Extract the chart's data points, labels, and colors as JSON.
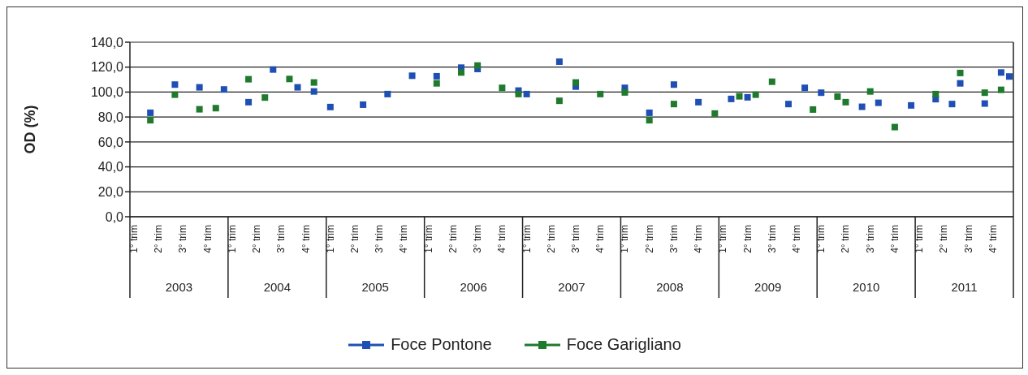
{
  "chart_data": {
    "type": "scatter",
    "ylabel": "OD (%)",
    "marker": "square",
    "grid": "y",
    "legend": "bottom",
    "categories": [
      "1° trim",
      null,
      null,
      "2° trim",
      null,
      null,
      "3° trim",
      null,
      null,
      "4° trim",
      null,
      null,
      "1° trim",
      null,
      null,
      "2° trim",
      null,
      null,
      "3° trim",
      null,
      null,
      "4° trim",
      null,
      null,
      "1° trim",
      null,
      null,
      "2° trim",
      null,
      null,
      "3° trim",
      null,
      null,
      "4° trim",
      null,
      null,
      "1° trim",
      null,
      null,
      "2° trim",
      null,
      null,
      "3° trim",
      null,
      null,
      "4° trim",
      null,
      null,
      "1° trim",
      null,
      null,
      "2° trim",
      null,
      null,
      "3° trim",
      null,
      null,
      "4° trim",
      null,
      null,
      "1° trim",
      null,
      null,
      "2° trim",
      null,
      null,
      "3° trim",
      null,
      null,
      "4° trim",
      null,
      null,
      "1° trim",
      null,
      null,
      "2° trim",
      null,
      null,
      "3° trim",
      null,
      null,
      "4° trim",
      null,
      null,
      "1° trim",
      null,
      null,
      "2° trim",
      null,
      null,
      "3° trim",
      null,
      null,
      "4° trim",
      null,
      null,
      "1° trim",
      null,
      null,
      "2° trim",
      null,
      null,
      "3° trim",
      null,
      null,
      "4° trim",
      null,
      null
    ],
    "x2lim": [
      2003,
      2012
    ],
    "x2ticks": [
      {
        "value": 2003.5,
        "label": "2003"
      },
      {
        "value": 2004.5,
        "label": "2004"
      },
      {
        "value": 2005.5,
        "label": "2005"
      },
      {
        "value": 2006.5,
        "label": "2006"
      },
      {
        "value": 2007.5,
        "label": "2007"
      },
      {
        "value": 2008.5,
        "label": "2008"
      },
      {
        "value": 2009.5,
        "label": "2009"
      },
      {
        "value": 2010.5,
        "label": "2010"
      },
      {
        "value": 2011.5,
        "label": "2011"
      }
    ],
    "ylim": [
      0,
      140
    ],
    "yticks": [
      {
        "value": 0,
        "label": "0,0"
      },
      {
        "value": 20,
        "label": "20,0"
      },
      {
        "value": 40,
        "label": "40,0"
      },
      {
        "value": 60,
        "label": "60,0"
      },
      {
        "value": 80,
        "label": "80,0"
      },
      {
        "value": 100,
        "label": "100,0"
      },
      {
        "value": 120,
        "label": "120,0"
      },
      {
        "value": 140,
        "label": "140,0"
      }
    ],
    "series": [
      {
        "name": "Foce Pontone",
        "color": "#1f4fb4",
        "values": [
          null,
          null,
          83.4,
          null,
          null,
          106.0,
          null,
          null,
          103.8,
          null,
          null,
          102.1,
          null,
          null,
          91.9,
          null,
          null,
          118.1,
          null,
          null,
          103.8,
          null,
          100.5,
          null,
          88.0,
          null,
          null,
          null,
          89.9,
          null,
          null,
          98.4,
          null,
          null,
          113.1,
          null,
          null,
          112.7,
          null,
          null,
          119.6,
          null,
          118.5,
          null,
          null,
          null,
          null,
          101.2,
          98.4,
          null,
          null,
          null,
          124.4,
          null,
          104.4,
          null,
          null,
          null,
          null,
          null,
          103.4,
          null,
          null,
          83.4,
          null,
          null,
          106.0,
          null,
          null,
          91.9,
          null,
          null,
          null,
          94.5,
          null,
          95.8,
          null,
          null,
          null,
          null,
          90.4,
          null,
          103.4,
          null,
          99.5,
          null,
          null,
          null,
          null,
          88.2,
          null,
          91.4,
          null,
          null,
          null,
          89.3,
          null,
          null,
          94.3,
          null,
          90.4,
          107.0,
          null,
          null,
          90.8,
          null,
          115.7,
          112.5
        ]
      },
      {
        "name": "Foce Garigliano",
        "color": "#1f7a2e",
        "values": [
          null,
          null,
          77.4,
          null,
          null,
          97.9,
          null,
          null,
          86.2,
          null,
          87.1,
          null,
          null,
          null,
          110.3,
          null,
          95.6,
          null,
          null,
          110.5,
          null,
          null,
          107.7,
          null,
          null,
          null,
          null,
          null,
          null,
          null,
          null,
          null,
          null,
          null,
          null,
          null,
          null,
          107.0,
          null,
          null,
          115.7,
          null,
          121.3,
          null,
          null,
          103.4,
          null,
          98.4,
          null,
          null,
          null,
          null,
          93.0,
          null,
          107.7,
          null,
          null,
          98.4,
          null,
          null,
          99.7,
          null,
          null,
          77.4,
          null,
          null,
          90.4,
          null,
          null,
          null,
          null,
          82.8,
          null,
          null,
          96.6,
          null,
          97.9,
          null,
          108.3,
          null,
          null,
          null,
          null,
          86.0,
          null,
          null,
          96.4,
          91.9,
          null,
          null,
          100.5,
          null,
          null,
          71.9,
          null,
          null,
          null,
          null,
          98.4,
          null,
          null,
          115.3,
          null,
          null,
          99.5,
          null,
          101.8,
          null
        ]
      }
    ]
  }
}
